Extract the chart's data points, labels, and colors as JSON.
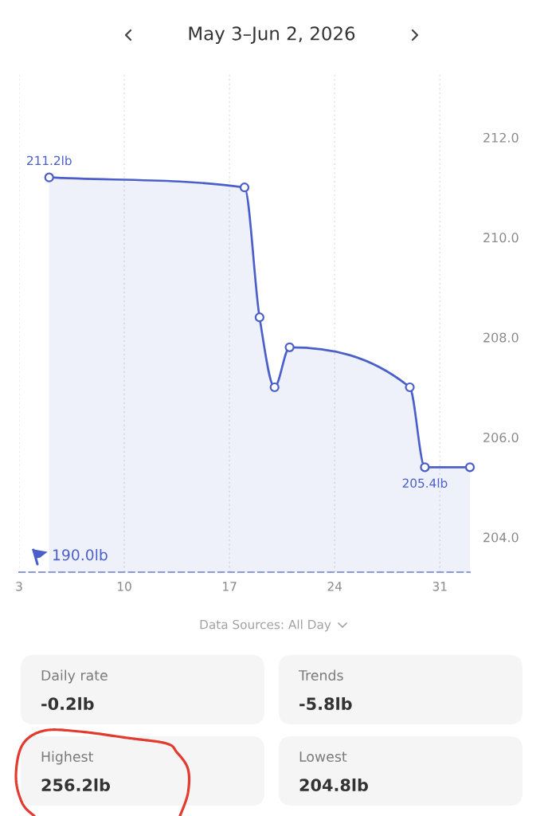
{
  "chart_data": [
    {
      "type": "area",
      "title": "May 3–Jun 2, 2026",
      "x": [
        "2026-05-05",
        "2026-05-18",
        "2026-05-19",
        "2026-05-20",
        "2026-05-21",
        "2026-05-29",
        "2026-05-30",
        "2026-06-02"
      ],
      "series": [
        {
          "color": "#4a5fc9",
          "values": [
            211.2,
            211.0,
            208.4,
            207.0,
            207.8,
            207.0,
            205.4,
            205.4
          ],
          "value_labels": [
            "211.2lb",
            null,
            null,
            null,
            null,
            null,
            "205.4lb",
            null
          ]
        }
      ],
      "xlim": [
        "2026-05-03",
        "2026-06-02"
      ],
      "xticks": [
        {
          "value": "2026-05-03",
          "label": "3"
        },
        {
          "value": "2026-05-10",
          "label": "10"
        },
        {
          "value": "2026-05-17",
          "label": "17"
        },
        {
          "value": "2026-05-24",
          "label": "24"
        },
        {
          "value": "2026-05-31",
          "label": "31"
        }
      ],
      "ylim": [
        203.3,
        213.3
      ],
      "yticks": [
        {
          "value": 204,
          "label": "204.0"
        },
        {
          "value": 206,
          "label": "206.0"
        },
        {
          "value": 208,
          "label": "208.0"
        },
        {
          "value": 210,
          "label": "210.0"
        },
        {
          "value": 212,
          "label": "212.0"
        }
      ],
      "grid": "x",
      "marker": "circle",
      "line_style": "solid",
      "annotations": [
        "190.0lb",
        "Data Sources: All Day"
      ]
    },
    {
      "type": "other",
      "annotations": [
        "Daily rate",
        "-0.2lb",
        "Trends",
        "-5.8lb",
        "Highest",
        "256.2lb",
        "Lowest",
        "204.8lb"
      ]
    }
  ]
}
